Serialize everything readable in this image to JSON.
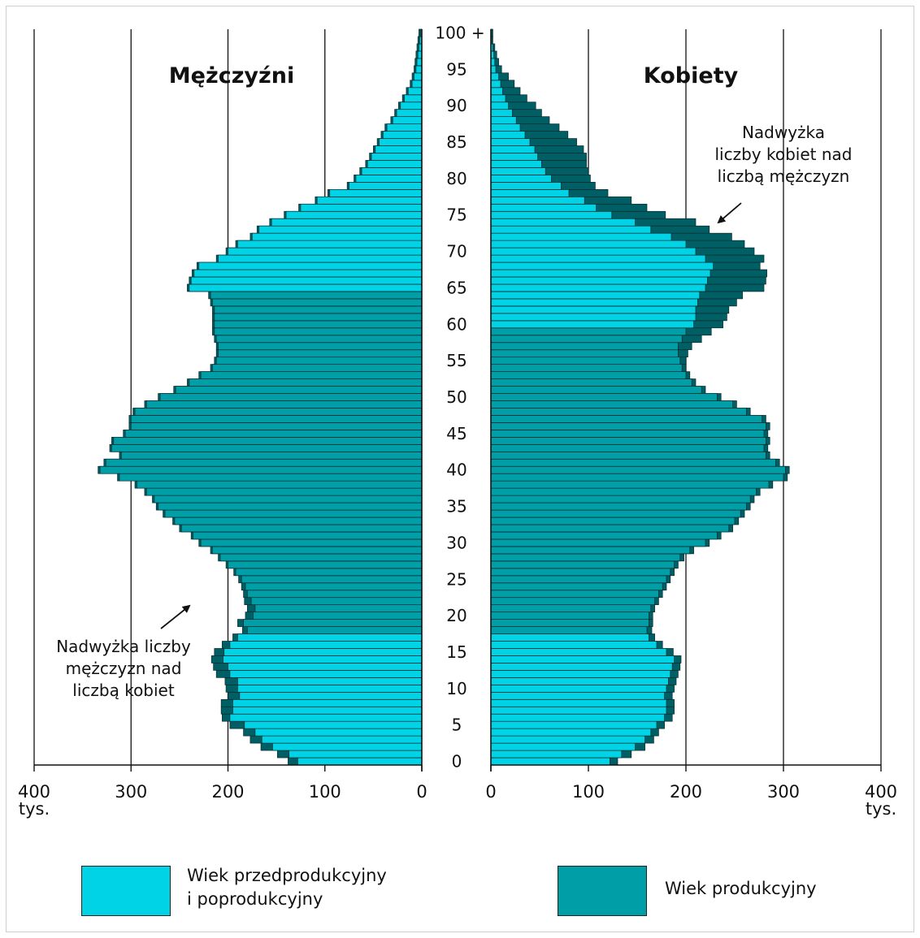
{
  "chart_data": {
    "type": "bar",
    "orientation": "horizontal-pyramid",
    "panels": {
      "left": {
        "title": "Mężczyźni"
      },
      "right": {
        "title": "Kobiety"
      }
    },
    "center_axis": {
      "tick_labels": [
        "100 +",
        "95",
        "90",
        "85",
        "80",
        "75",
        "70",
        "65",
        "60",
        "55",
        "50",
        "45",
        "40",
        "35",
        "30",
        "25",
        "20",
        "15",
        "10",
        "5",
        "0"
      ]
    },
    "x_axis": {
      "ticks": [
        0,
        100,
        200,
        300,
        400
      ],
      "tick_labels": [
        "0",
        "100",
        "200",
        "300",
        "400"
      ],
      "unit": "tys.",
      "range": [
        0,
        400
      ]
    },
    "grid": true,
    "series": [
      {
        "name": "Wiek przedprodukcyjny\ni poprodukcyjny",
        "color": "#00d3e5"
      },
      {
        "name": "Wiek produkcyjny",
        "color": "#009ea6"
      }
    ],
    "excess_color": "#005f64",
    "working_age": {
      "men": [
        18,
        64
      ],
      "women": [
        18,
        59
      ]
    },
    "ages": [
      0,
      1,
      2,
      3,
      4,
      5,
      6,
      7,
      8,
      9,
      10,
      11,
      12,
      13,
      14,
      15,
      16,
      17,
      18,
      19,
      20,
      21,
      22,
      23,
      24,
      25,
      26,
      27,
      28,
      29,
      30,
      31,
      32,
      33,
      34,
      35,
      36,
      37,
      38,
      39,
      40,
      41,
      42,
      43,
      44,
      45,
      46,
      47,
      48,
      49,
      50,
      51,
      52,
      53,
      54,
      55,
      56,
      57,
      58,
      59,
      60,
      61,
      62,
      63,
      64,
      65,
      66,
      67,
      68,
      69,
      70,
      71,
      72,
      73,
      74,
      75,
      76,
      77,
      78,
      79,
      80,
      81,
      82,
      83,
      84,
      85,
      86,
      87,
      88,
      89,
      90,
      91,
      92,
      93,
      94,
      95,
      96,
      97,
      98,
      99,
      100
    ],
    "men": [
      128,
      137,
      154,
      165,
      172,
      183,
      198,
      195,
      195,
      188,
      190,
      190,
      198,
      200,
      205,
      204,
      198,
      190,
      180,
      184,
      174,
      172,
      176,
      180,
      182,
      186,
      192,
      200,
      208,
      216,
      228,
      236,
      248,
      255,
      265,
      272,
      276,
      284,
      294,
      312,
      332,
      326,
      310,
      320,
      318,
      306,
      300,
      300,
      296,
      284,
      270,
      254,
      240,
      228,
      216,
      212,
      210,
      210,
      212,
      214,
      214,
      214,
      214,
      216,
      218,
      240,
      238,
      235,
      230,
      210,
      200,
      190,
      175,
      168,
      155,
      140,
      125,
      108,
      95,
      75,
      68,
      62,
      56,
      52,
      48,
      44,
      40,
      36,
      30,
      26,
      22,
      18,
      14,
      10,
      8,
      6,
      5,
      4,
      3,
      2,
      1
    ],
    "women": [
      122,
      134,
      148,
      158,
      164,
      170,
      178,
      180,
      180,
      178,
      180,
      182,
      184,
      186,
      188,
      180,
      170,
      162,
      160,
      162,
      162,
      164,
      168,
      172,
      176,
      180,
      184,
      188,
      194,
      204,
      220,
      232,
      244,
      250,
      256,
      262,
      266,
      272,
      285,
      300,
      302,
      292,
      282,
      280,
      282,
      280,
      282,
      278,
      262,
      248,
      232,
      216,
      206,
      200,
      196,
      194,
      192,
      192,
      196,
      200,
      208,
      210,
      210,
      212,
      214,
      220,
      222,
      225,
      228,
      220,
      210,
      200,
      185,
      164,
      148,
      124,
      108,
      96,
      80,
      72,
      62,
      56,
      52,
      48,
      45,
      40,
      35,
      30,
      26,
      22,
      18,
      15,
      12,
      10,
      8,
      5,
      4,
      3,
      2,
      1,
      1
    ],
    "women_excess": [
      8,
      10,
      10,
      9,
      8,
      8,
      8,
      8,
      8,
      8,
      8,
      8,
      8,
      8,
      7,
      7,
      6,
      6,
      5,
      4,
      4,
      4,
      4,
      4,
      4,
      4,
      4,
      4,
      4,
      4,
      4,
      4,
      4,
      4,
      4,
      4,
      4,
      4,
      4,
      4,
      4,
      4,
      4,
      4,
      4,
      4,
      4,
      4,
      4,
      4,
      4,
      4,
      4,
      4,
      4,
      6,
      10,
      14,
      20,
      26,
      30,
      32,
      34,
      40,
      44,
      60,
      60,
      58,
      48,
      60,
      60,
      60,
      62,
      60,
      62,
      55,
      52,
      48,
      40,
      35,
      40,
      44,
      46,
      50,
      50,
      48,
      44,
      40,
      34,
      30,
      28,
      22,
      18,
      14,
      10,
      6,
      4,
      3,
      2,
      1,
      1
    ],
    "men_excess": [
      10,
      12,
      12,
      12,
      12,
      15,
      8,
      12,
      12,
      12,
      12,
      13,
      14,
      15,
      12,
      10,
      8,
      5,
      5,
      6,
      8,
      8,
      7,
      4,
      4,
      3,
      2,
      2,
      2,
      2,
      2,
      2,
      2,
      2,
      2,
      2,
      2,
      2,
      2,
      2,
      2,
      2,
      2,
      2,
      2,
      2,
      2,
      2,
      2,
      2,
      2,
      2,
      2,
      2,
      2,
      2,
      2,
      2,
      2,
      2,
      2,
      2,
      2,
      2,
      2,
      2,
      2,
      2,
      2,
      2,
      2,
      2,
      2,
      2,
      2,
      2,
      2,
      2,
      2,
      2,
      2,
      2,
      2,
      2,
      2,
      2,
      2,
      2,
      2,
      2,
      2,
      2,
      2,
      2,
      2,
      2,
      2,
      2,
      2,
      2,
      2
    ],
    "annotations": [
      {
        "text": "Nadwyżka\nliczby kobiet nad\nliczbą mężczyzn"
      },
      {
        "text": "Nadwyżka liczby\nmężczyzn nad\nliczbą kobiet"
      }
    ]
  }
}
